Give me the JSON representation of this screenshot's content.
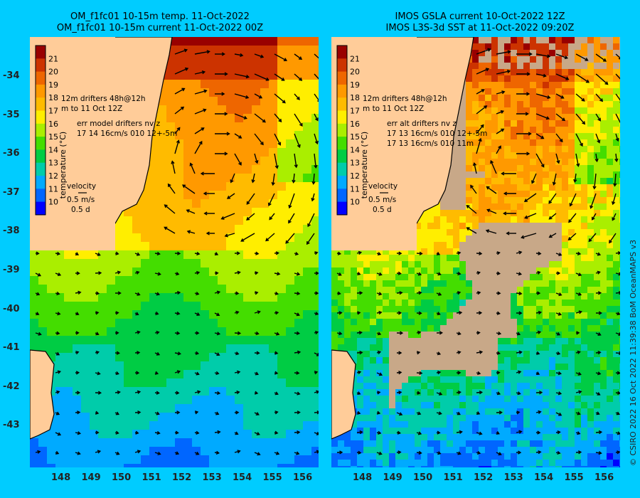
{
  "panels": [
    {
      "title_line1": "OM_f1fc01 10-15m temp. 11-Oct-2022",
      "title_line2": "OM_f1fc01 10-15m current 11-Oct-2022 00Z",
      "colorbar_title": "temperature (°C)",
      "legend_lines": [
        "12m  drifters 48h@12h",
        "m  to 11 Oct 12Z",
        "err model drifters nv z",
        "17 14 16cm/s 010 12+-5m"
      ],
      "velocity_label": "velocity",
      "velocity_scale": "0.5 m/s",
      "velocity_time": "0.5 d",
      "kind": "model"
    },
    {
      "title_line1": "IMOS GSLA current 10-Oct-2022 12Z",
      "title_line2": "IMOS L3S-3d SST at 11-Oct-2022 09:20Z",
      "colorbar_title": "temperature (°C)",
      "legend_lines": [
        "12m  drifters 48h@12h",
        "m  to 11 Oct 12Z",
        "err alt drifters nv z",
        "17 13 16cm/s 010 12+-5m",
        "17 13 16cm/s 010 11m"
      ],
      "velocity_label": "velocity",
      "velocity_scale": "0.5 m/s",
      "velocity_time": "0.5 d",
      "kind": "sat"
    }
  ],
  "colorbar_ticks": [
    "21",
    "20",
    "19",
    "18",
    "17",
    "16",
    "15",
    "14",
    "13",
    "12",
    "11",
    "10"
  ],
  "lat_ticks": [
    "-34",
    "-35",
    "-36",
    "-37",
    "-38",
    "-39",
    "-40",
    "-41",
    "-42",
    "-43"
  ],
  "lon_ticks": [
    "148",
    "149",
    "150",
    "151",
    "152",
    "153",
    "154",
    "155",
    "156"
  ],
  "copyright": "© CSIRO 2022   16 Oct 2022 11:39:38 BoM OceanMAPS v3",
  "colors": {
    "background": "#00ccff",
    "land": "#ffcc99",
    "cloud": "#c8a888"
  },
  "palette": [
    "#000088",
    "#0000ff",
    "#0066ff",
    "#00aaff",
    "#00ccaa",
    "#00cc44",
    "#44dd00",
    "#aaee00",
    "#ffee00",
    "#ffbb00",
    "#ff9900",
    "#ee6600",
    "#cc3300",
    "#990000"
  ]
}
